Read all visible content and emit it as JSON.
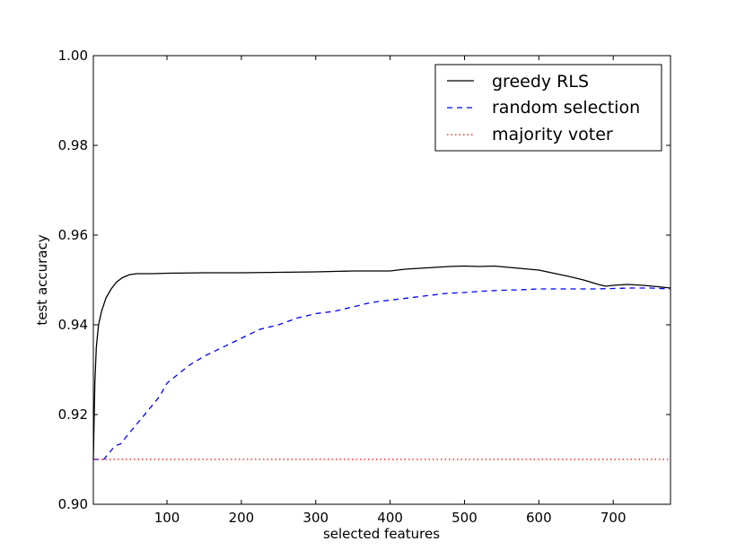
{
  "chart_data": {
    "type": "line",
    "xlabel": "selected features",
    "ylabel": "test accuracy",
    "xlim": [
      1,
      777
    ],
    "ylim": [
      0.9,
      1.0
    ],
    "x_ticks": [
      100,
      200,
      300,
      400,
      500,
      600,
      700
    ],
    "y_ticks": [
      0.9,
      0.92,
      0.94,
      0.96,
      0.98,
      1.0
    ],
    "x_tick_labels": [
      "100",
      "200",
      "300",
      "400",
      "500",
      "600",
      "700"
    ],
    "y_tick_labels": [
      "0.90",
      "0.92",
      "0.94",
      "0.96",
      "0.98",
      "1.00"
    ],
    "grid": false,
    "legend_position": "top-right",
    "series": [
      {
        "name": "greedy RLS",
        "color": "#000000",
        "style": "solid",
        "x": [
          1,
          3,
          5,
          8,
          12,
          18,
          25,
          32,
          40,
          50,
          60,
          80,
          100,
          150,
          200,
          250,
          300,
          350,
          400,
          420,
          440,
          460,
          480,
          500,
          520,
          540,
          560,
          580,
          600,
          620,
          640,
          660,
          680,
          690,
          700,
          720,
          740,
          760,
          777
        ],
        "y": [
          0.91,
          0.927,
          0.935,
          0.94,
          0.943,
          0.946,
          0.948,
          0.9495,
          0.9505,
          0.9512,
          0.9514,
          0.9514,
          0.9515,
          0.9516,
          0.9516,
          0.9517,
          0.9518,
          0.952,
          0.952,
          0.9524,
          0.9526,
          0.9528,
          0.953,
          0.9531,
          0.953,
          0.9531,
          0.9528,
          0.9525,
          0.9522,
          0.9515,
          0.9508,
          0.95,
          0.949,
          0.9486,
          0.9488,
          0.949,
          0.9488,
          0.9485,
          0.9482
        ]
      },
      {
        "name": "random selection",
        "color": "#0000ff",
        "style": "dashed",
        "x": [
          1,
          15,
          20,
          25,
          30,
          38,
          45,
          55,
          65,
          75,
          90,
          100,
          115,
          130,
          150,
          175,
          200,
          225,
          250,
          275,
          300,
          325,
          350,
          375,
          400,
          425,
          450,
          475,
          500,
          525,
          550,
          575,
          600,
          625,
          650,
          675,
          700,
          725,
          750,
          777
        ],
        "y": [
          0.91,
          0.91,
          0.911,
          0.912,
          0.913,
          0.9135,
          0.915,
          0.917,
          0.919,
          0.921,
          0.924,
          0.927,
          0.929,
          0.931,
          0.933,
          0.935,
          0.937,
          0.939,
          0.94,
          0.9415,
          0.9425,
          0.943,
          0.944,
          0.945,
          0.9455,
          0.946,
          0.9465,
          0.947,
          0.9472,
          0.9475,
          0.9477,
          0.9478,
          0.948,
          0.948,
          0.948,
          0.948,
          0.9481,
          0.9482,
          0.9482,
          0.948
        ]
      },
      {
        "name": "majority voter",
        "color": "#ff0000",
        "style": "dotted",
        "x": [
          1,
          777
        ],
        "y": [
          0.91,
          0.91
        ]
      }
    ]
  }
}
